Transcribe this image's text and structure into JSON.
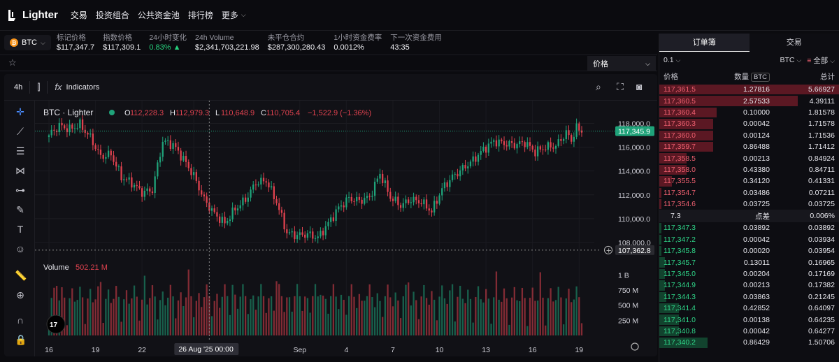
{
  "nav": {
    "logo": "Lighter",
    "items": [
      "交易",
      "投资组合",
      "公共资金池",
      "排行榜"
    ],
    "more": "更多"
  },
  "ticker": {
    "symbol": "BTC",
    "stats": [
      {
        "label": "标记价格",
        "value": "$117,347.7",
        "color": "white"
      },
      {
        "label": "指数价格",
        "value": "$117,309.1",
        "color": "white"
      },
      {
        "label": "24小时变化",
        "value": "0.83% ▲",
        "color": "green"
      },
      {
        "label": "24h Volume",
        "value": "$2,341,703,221.98",
        "color": "white"
      },
      {
        "label": "未平仓合约",
        "value": "$287,300,280.43",
        "color": "white"
      },
      {
        "label": "1小时资金费率",
        "value": "0.0012%",
        "color": "white"
      },
      {
        "label": "下一次资金费用",
        "value": "43:35",
        "color": "white"
      }
    ]
  },
  "subbar": {
    "price_select": "价格"
  },
  "chart_toolbar": {
    "timeframe": "4h",
    "indicators": "Indicators"
  },
  "chart_data": {
    "type": "candlestick",
    "legend_title": "BTC · Lighter",
    "ohlc": {
      "o": "112,228.3",
      "h": "112,979.3",
      "l": "110,648.9",
      "c": "110,705.4",
      "chg": "−1,522.9 (−1.36%)"
    },
    "ylim": [
      107000,
      119200
    ],
    "price_ticks": [
      "118,000.0",
      "116,000.0",
      "114,000.0",
      "112,000.0",
      "110,000.0",
      "108,000.0"
    ],
    "price_tick_values": [
      118000,
      116000,
      114000,
      112000,
      110000,
      108000
    ],
    "current_price": "117,345.9",
    "current_price_value": 117345.9,
    "low_marker": "107,362.8",
    "low_marker_value": 107362.8,
    "x_ticks": [
      "16",
      "19",
      "22",
      "26 Aug '25   00:00",
      "Sep",
      "4",
      "7",
      "10",
      "13",
      "16",
      "19"
    ],
    "x_tick_index": [
      0,
      18,
      36,
      56,
      97,
      115,
      133,
      151,
      169,
      187,
      205
    ],
    "crosshair_index": 62,
    "volume_label": "Volume",
    "volume_value": "502.21 M",
    "vol_ticks": [
      "1 B",
      "750 M",
      "500 M",
      "250 M"
    ],
    "vol_tick_values": [
      1000,
      750,
      500,
      250
    ],
    "anchors": [
      [
        0,
        117000
      ],
      [
        4,
        117800
      ],
      [
        8,
        117500
      ],
      [
        12,
        117900
      ],
      [
        16,
        116800
      ],
      [
        20,
        115200
      ],
      [
        24,
        115400
      ],
      [
        28,
        113500
      ],
      [
        32,
        113000
      ],
      [
        36,
        112200
      ],
      [
        40,
        112400
      ],
      [
        44,
        116500
      ],
      [
        48,
        116200
      ],
      [
        52,
        115000
      ],
      [
        56,
        113600
      ],
      [
        60,
        111600
      ],
      [
        64,
        110400
      ],
      [
        68,
        109600
      ],
      [
        72,
        110800
      ],
      [
        76,
        111600
      ],
      [
        80,
        113000
      ],
      [
        84,
        113200
      ],
      [
        88,
        111400
      ],
      [
        92,
        108800
      ],
      [
        96,
        108600
      ],
      [
        100,
        108700
      ],
      [
        104,
        108400
      ],
      [
        108,
        109600
      ],
      [
        112,
        110900
      ],
      [
        116,
        111700
      ],
      [
        120,
        111500
      ],
      [
        124,
        111800
      ],
      [
        128,
        113800
      ],
      [
        132,
        111800
      ],
      [
        136,
        111100
      ],
      [
        140,
        111600
      ],
      [
        144,
        111400
      ],
      [
        148,
        110600
      ],
      [
        152,
        112500
      ],
      [
        156,
        113500
      ],
      [
        160,
        114200
      ],
      [
        164,
        114900
      ],
      [
        168,
        115800
      ],
      [
        172,
        116500
      ],
      [
        176,
        116300
      ],
      [
        180,
        116200
      ],
      [
        184,
        116400
      ],
      [
        188,
        115600
      ],
      [
        192,
        116000
      ],
      [
        196,
        116100
      ],
      [
        200,
        117200
      ],
      [
        202,
        116600
      ],
      [
        204,
        117600
      ],
      [
        206,
        117350
      ]
    ],
    "candle_count": 207
  },
  "orderbook": {
    "tabs": [
      "订单簿",
      "交易"
    ],
    "step": "0.1",
    "symbol": "BTC",
    "filter": "全部",
    "headers": {
      "price": "价格",
      "qty": "数量",
      "qty_unit": "BTC",
      "total": "总计"
    },
    "asks": [
      [
        "117,361.5",
        "1.27816",
        "5.66927"
      ],
      [
        "117,360.5",
        "2.57533",
        "4.39111"
      ],
      [
        "117,360.4",
        "0.10000",
        "1.81578"
      ],
      [
        "117,360.3",
        "0.00042",
        "1.71578"
      ],
      [
        "117,360.0",
        "0.00124",
        "1.71536"
      ],
      [
        "117,359.7",
        "0.86488",
        "1.71412"
      ],
      [
        "117,358.5",
        "0.00213",
        "0.84924"
      ],
      [
        "117,358.0",
        "0.43380",
        "0.84711"
      ],
      [
        "117,355.5",
        "0.34120",
        "0.41331"
      ],
      [
        "117,354.7",
        "0.03486",
        "0.07211"
      ],
      [
        "117,354.6",
        "0.03725",
        "0.03725"
      ]
    ],
    "ask_depth": [
      1.0,
      0.77,
      0.32,
      0.3,
      0.3,
      0.3,
      0.15,
      0.15,
      0.07,
      0.013,
      0.007
    ],
    "spread": {
      "value": "7.3",
      "label": "点差",
      "pct": "0.006%"
    },
    "bids": [
      [
        "117,347.3",
        "0.03892",
        "0.03892"
      ],
      [
        "117,347.2",
        "0.00042",
        "0.03934"
      ],
      [
        "117,345.8",
        "0.00020",
        "0.03954"
      ],
      [
        "117,345.7",
        "0.13011",
        "0.16965"
      ],
      [
        "117,345.0",
        "0.00204",
        "0.17169"
      ],
      [
        "117,344.9",
        "0.00213",
        "0.17382"
      ],
      [
        "117,344.3",
        "0.03863",
        "0.21245"
      ],
      [
        "117,341.4",
        "0.42852",
        "0.64097"
      ],
      [
        "117,341.0",
        "0.00138",
        "0.64235"
      ],
      [
        "117,340.8",
        "0.00042",
        "0.64277"
      ],
      [
        "117,340.2",
        "0.86429",
        "1.50706"
      ]
    ],
    "bid_depth": [
      0.007,
      0.007,
      0.007,
      0.03,
      0.03,
      0.03,
      0.037,
      0.11,
      0.11,
      0.11,
      0.27
    ]
  }
}
